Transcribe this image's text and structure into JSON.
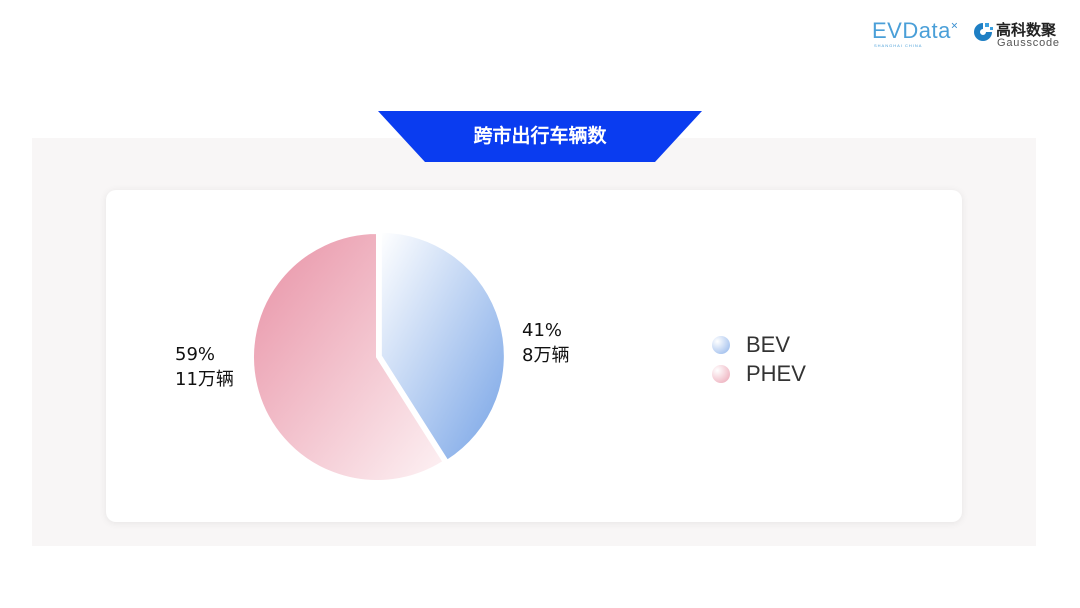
{
  "brand": {
    "evdata": "EVData",
    "evdata_sub": "SHANGHAI CHINA",
    "gauss_cn": "高科数聚",
    "gauss_en": "Gausscode"
  },
  "chart_data": {
    "type": "pie",
    "title": "跨市出行车辆数",
    "slices": [
      {
        "name": "BEV",
        "percent": 41,
        "value_label": "8万辆",
        "percent_label": "41%",
        "colors": [
          "#ffffff",
          "#76a3e6"
        ]
      },
      {
        "name": "PHEV",
        "percent": 59,
        "value_label": "11万辆",
        "percent_label": "59%",
        "colors": [
          "#e891a5",
          "#fdf2f4"
        ]
      }
    ],
    "legend_placement": "right",
    "legend": [
      "BEV",
      "PHEV"
    ]
  },
  "colors": {
    "banner": "#0a3cf0",
    "panel": "#f8f6f6"
  }
}
